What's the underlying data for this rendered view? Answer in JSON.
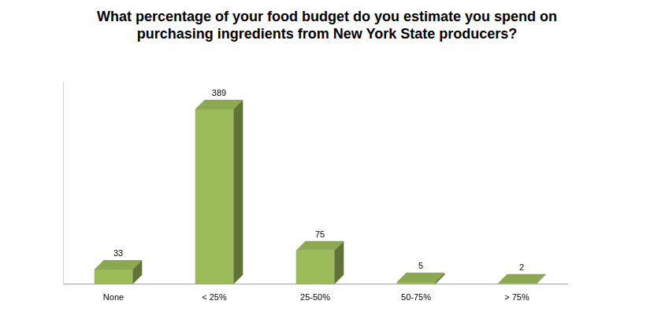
{
  "chart_data": {
    "type": "bar",
    "title": "What percentage of your food budget do you estimate you spend on purchasing ingredients from New York State producers?",
    "categories": [
      "None",
      "< 25%",
      "25-50%",
      "50-75%",
      "> 75%"
    ],
    "values": [
      33,
      389,
      75,
      5,
      2
    ],
    "color": "#9bbb59",
    "ylim": [
      0,
      450
    ],
    "grid": false,
    "data_labels": true,
    "tick_labels": "x"
  }
}
